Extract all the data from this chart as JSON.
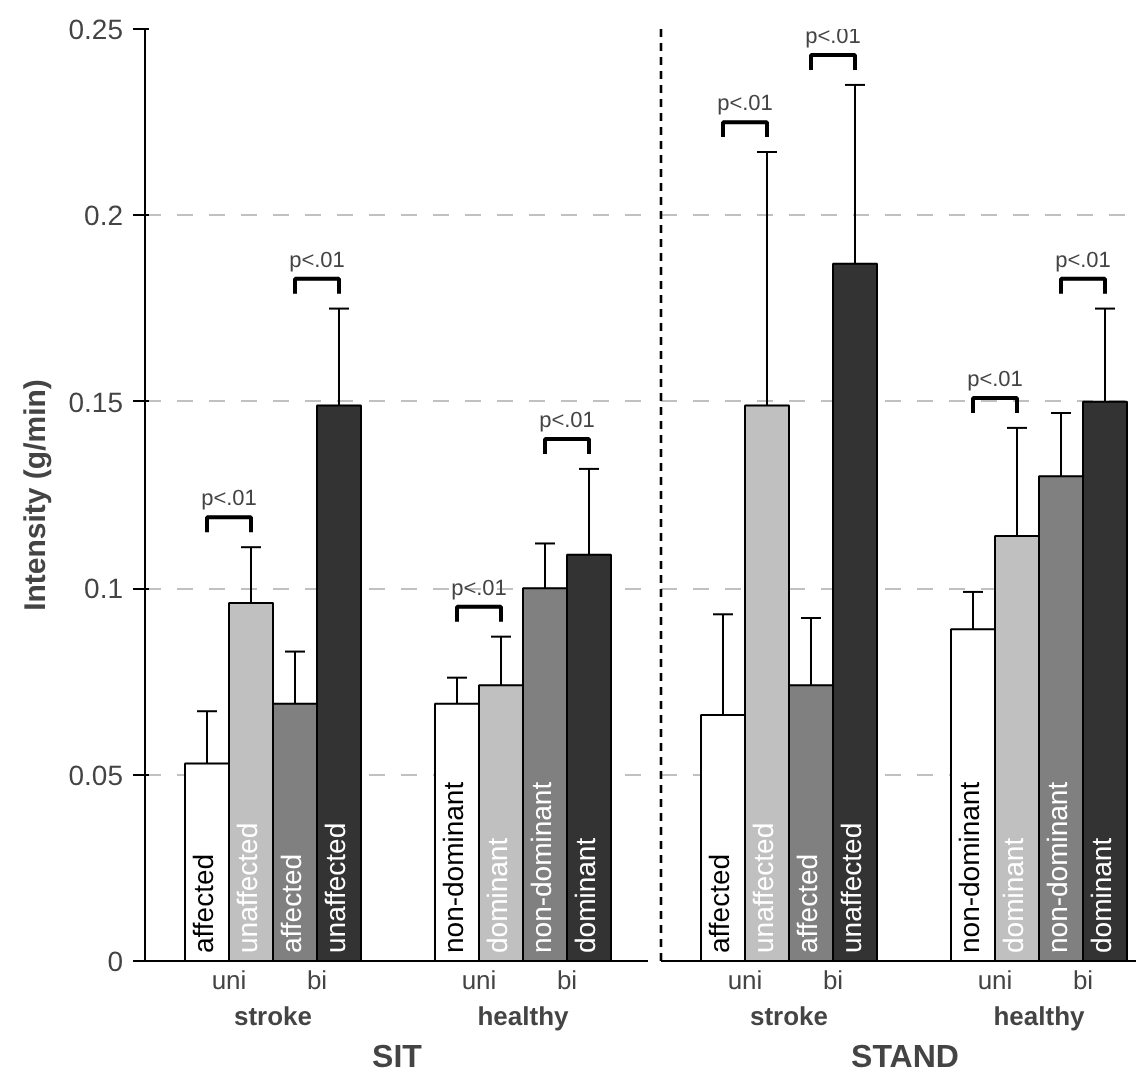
{
  "chart_data": [
    {
      "type": "bar",
      "xlabel": "SIT",
      "ylabel": "Intensity (g/min)",
      "categories": [
        "stroke",
        "healthy"
      ],
      "ylim": [
        0,
        0.25
      ],
      "yticks": [
        0,
        0.05,
        0.1,
        0.15,
        0.2,
        0.25
      ],
      "grid": "y",
      "series": [
        {
          "color": "#ffffff",
          "values": [
            0.053,
            0.069
          ],
          "errors": [
            [
              0.053,
              0.067
            ],
            [
              0.069,
              0.076
            ]
          ]
        },
        {
          "color": "#c0c0c0",
          "values": [
            0.096,
            0.074
          ],
          "errors": [
            [
              0.096,
              0.111
            ],
            [
              0.074,
              0.087
            ]
          ]
        },
        {
          "color": "#808080",
          "values": [
            0.069,
            0.1
          ],
          "errors": [
            [
              0.069,
              0.083
            ],
            [
              0.1,
              0.112
            ]
          ]
        },
        {
          "color": "#333333",
          "values": [
            0.149,
            0.109
          ],
          "errors": [
            [
              0.149,
              0.175
            ],
            [
              0.109,
              0.132
            ]
          ]
        }
      ],
      "annotations": [
        "affected",
        "unaffected",
        "affected",
        "unaffected",
        "non-dominant",
        "dominant",
        "non-dominant",
        "dominant",
        "p<.01",
        "p<.01",
        "p<.01",
        "p<.01",
        "uni",
        "bi",
        "uni",
        "bi"
      ]
    },
    {
      "type": "bar",
      "xlabel": "STAND",
      "categories": [
        "stroke",
        "healthy"
      ],
      "ylim": [
        0,
        0.25
      ],
      "yticks": [
        0,
        0.05,
        0.1,
        0.15,
        0.2,
        0.25
      ],
      "grid": "y",
      "tick_labels": "x",
      "series": [
        {
          "color": "#ffffff",
          "values": [
            0.066,
            0.089
          ],
          "errors": [
            [
              0.066,
              0.093
            ],
            [
              0.089,
              0.099
            ]
          ]
        },
        {
          "color": "#c0c0c0",
          "values": [
            0.149,
            0.114
          ],
          "errors": [
            [
              0.149,
              0.217
            ],
            [
              0.114,
              0.143
            ]
          ]
        },
        {
          "color": "#808080",
          "values": [
            0.074,
            0.13
          ],
          "errors": [
            [
              0.074,
              0.092
            ],
            [
              0.13,
              0.147
            ]
          ]
        },
        {
          "color": "#333333",
          "values": [
            0.187,
            0.15
          ],
          "errors": [
            [
              0.187,
              0.235
            ],
            [
              0.15,
              0.175
            ]
          ]
        }
      ],
      "annotations": [
        "affected",
        "unaffected",
        "affected",
        "unaffected",
        "non-dominant",
        "dominant",
        "non-dominant",
        "dominant",
        "p<.01",
        "p<.01",
        "p<.01",
        "p<.01",
        "uni",
        "bi",
        "uni",
        "bi"
      ]
    }
  ]
}
